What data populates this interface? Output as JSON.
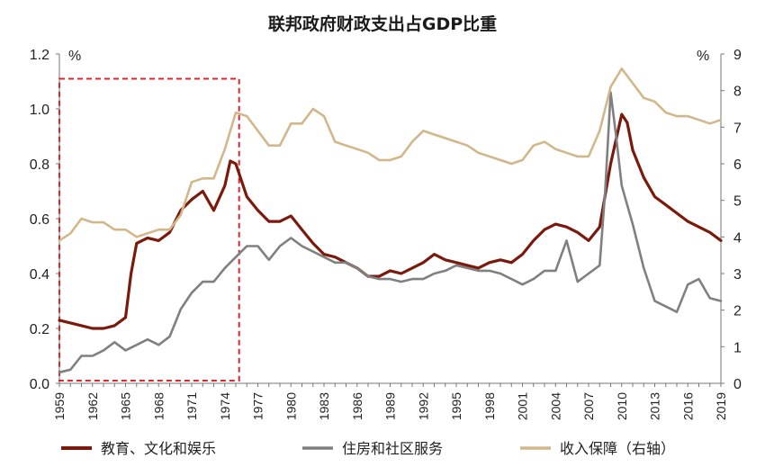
{
  "chart_data": {
    "type": "line",
    "title": "联邦政府财政支出占GDP比重",
    "y_left_unit": "%",
    "y_right_unit": "%",
    "y_left_lim": [
      0,
      1.2
    ],
    "y_right_lim": [
      0,
      9
    ],
    "y_left_ticks": [
      "0.0",
      "0.2",
      "0.4",
      "0.6",
      "0.8",
      "1.0",
      "1.2"
    ],
    "y_right_ticks": [
      "0",
      "1",
      "2",
      "3",
      "4",
      "5",
      "6",
      "7",
      "8",
      "9"
    ],
    "x_lim": [
      1959,
      2019
    ],
    "x_ticks": [
      "1959",
      "1962",
      "1965",
      "1968",
      "1971",
      "1974",
      "1977",
      "1980",
      "1983",
      "1986",
      "1989",
      "1992",
      "1995",
      "1998",
      "2001",
      "2004",
      "2007",
      "2010",
      "2013",
      "2016",
      "2019"
    ],
    "highlight_box": {
      "x_start": 1959,
      "x_end": 1975.3,
      "y_left_start": 0.01,
      "y_left_end": 1.11,
      "style": "dashed-red"
    },
    "legend_position": "bottom",
    "series": [
      {
        "name": "教育、文化和娱乐",
        "axis": "left",
        "color": "#7B1A0C",
        "x": [
          1959,
          1960,
          1961,
          1962,
          1963,
          1964,
          1965,
          1965.5,
          1966,
          1967,
          1968,
          1969,
          1970,
          1971,
          1972,
          1973,
          1974,
          1974.5,
          1975,
          1976,
          1977,
          1978,
          1979,
          1980,
          1981,
          1982,
          1983,
          1984,
          1985,
          1986,
          1987,
          1988,
          1989,
          1990,
          1991,
          1992,
          1993,
          1994,
          1995,
          1996,
          1997,
          1998,
          1999,
          2000,
          2001,
          2002,
          2003,
          2004,
          2005,
          2006,
          2007,
          2008,
          2009,
          2010,
          2010.5,
          2011,
          2012,
          2013,
          2014,
          2015,
          2016,
          2017,
          2018,
          2019
        ],
        "values": [
          0.23,
          0.22,
          0.21,
          0.2,
          0.2,
          0.21,
          0.24,
          0.4,
          0.51,
          0.53,
          0.52,
          0.55,
          0.63,
          0.67,
          0.7,
          0.63,
          0.72,
          0.81,
          0.8,
          0.68,
          0.63,
          0.59,
          0.59,
          0.61,
          0.56,
          0.51,
          0.47,
          0.46,
          0.44,
          0.42,
          0.39,
          0.39,
          0.41,
          0.4,
          0.42,
          0.44,
          0.47,
          0.45,
          0.44,
          0.43,
          0.42,
          0.44,
          0.45,
          0.44,
          0.47,
          0.52,
          0.56,
          0.58,
          0.57,
          0.55,
          0.52,
          0.57,
          0.8,
          0.98,
          0.95,
          0.85,
          0.75,
          0.68,
          0.65,
          0.62,
          0.59,
          0.57,
          0.55,
          0.52
        ]
      },
      {
        "name": "住房和社区服务",
        "axis": "left",
        "color": "#808080",
        "x": [
          1959,
          1960,
          1961,
          1962,
          1963,
          1964,
          1965,
          1966,
          1967,
          1968,
          1969,
          1970,
          1971,
          1972,
          1973,
          1974,
          1975,
          1976,
          1977,
          1978,
          1979,
          1980,
          1981,
          1982,
          1983,
          1984,
          1985,
          1986,
          1987,
          1988,
          1989,
          1990,
          1991,
          1992,
          1993,
          1994,
          1995,
          1996,
          1997,
          1998,
          1999,
          2000,
          2001,
          2002,
          2003,
          2004,
          2005,
          2006,
          2007,
          2008,
          2008.5,
          2009,
          2009.5,
          2010,
          2011,
          2012,
          2013,
          2014,
          2015,
          2016,
          2017,
          2018,
          2019
        ],
        "values": [
          0.04,
          0.05,
          0.1,
          0.1,
          0.12,
          0.15,
          0.12,
          0.14,
          0.16,
          0.14,
          0.17,
          0.27,
          0.33,
          0.37,
          0.37,
          0.42,
          0.46,
          0.5,
          0.5,
          0.45,
          0.5,
          0.53,
          0.5,
          0.48,
          0.46,
          0.44,
          0.44,
          0.42,
          0.39,
          0.38,
          0.38,
          0.37,
          0.38,
          0.38,
          0.4,
          0.41,
          0.43,
          0.42,
          0.41,
          0.41,
          0.4,
          0.38,
          0.36,
          0.38,
          0.41,
          0.41,
          0.52,
          0.37,
          0.4,
          0.43,
          0.7,
          1.06,
          0.9,
          0.72,
          0.58,
          0.42,
          0.3,
          0.28,
          0.26,
          0.36,
          0.38,
          0.31,
          0.3
        ]
      },
      {
        "name": "收入保障（右轴）",
        "axis": "right",
        "color": "#D2B78A",
        "x": [
          1959,
          1960,
          1961,
          1962,
          1963,
          1964,
          1965,
          1966,
          1967,
          1968,
          1969,
          1970,
          1971,
          1972,
          1973,
          1974,
          1975,
          1976,
          1977,
          1978,
          1979,
          1980,
          1981,
          1982,
          1983,
          1984,
          1985,
          1986,
          1987,
          1988,
          1989,
          1990,
          1991,
          1992,
          1993,
          1994,
          1995,
          1996,
          1997,
          1998,
          1999,
          2000,
          2001,
          2002,
          2003,
          2004,
          2005,
          2006,
          2007,
          2008,
          2009,
          2010,
          2011,
          2012,
          2013,
          2014,
          2015,
          2016,
          2017,
          2018,
          2019
        ],
        "values": [
          3.9,
          4.1,
          4.5,
          4.4,
          4.4,
          4.2,
          4.2,
          4.0,
          4.1,
          4.2,
          4.2,
          4.6,
          5.5,
          5.6,
          5.6,
          6.4,
          7.4,
          7.3,
          6.9,
          6.5,
          6.5,
          7.1,
          7.1,
          7.5,
          7.3,
          6.6,
          6.5,
          6.4,
          6.3,
          6.1,
          6.1,
          6.2,
          6.6,
          6.9,
          6.8,
          6.7,
          6.6,
          6.5,
          6.3,
          6.2,
          6.1,
          6.0,
          6.1,
          6.5,
          6.6,
          6.4,
          6.3,
          6.2,
          6.2,
          6.9,
          8.1,
          8.6,
          8.2,
          7.8,
          7.7,
          7.4,
          7.3,
          7.3,
          7.2,
          7.1,
          7.2
        ]
      }
    ]
  }
}
